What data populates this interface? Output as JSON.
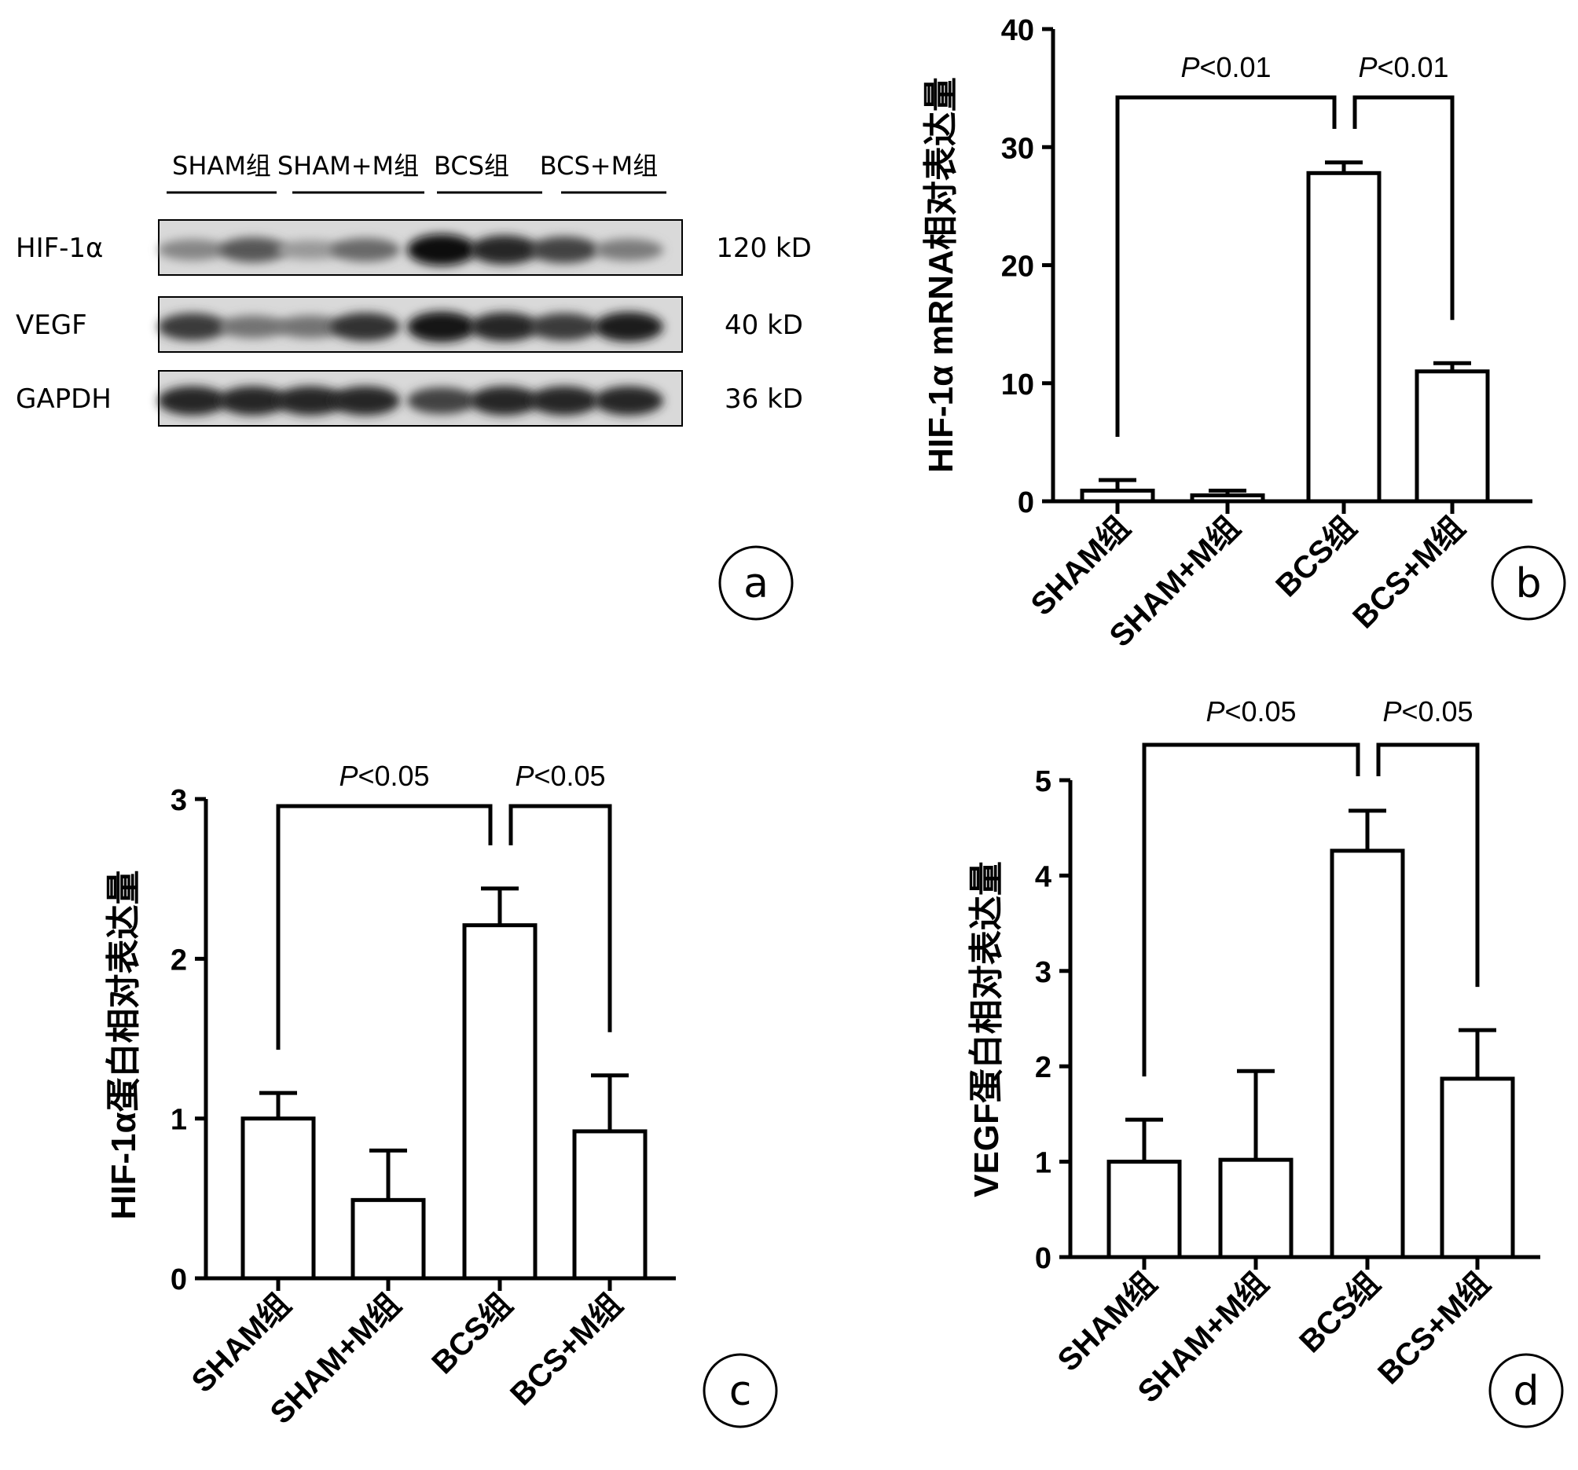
{
  "blot": {
    "panel_label": "a",
    "groups": [
      "SHAM组",
      "SHAM+M组",
      "BCS组",
      "BCS+M组"
    ],
    "rows": [
      {
        "protein": "HIF-1α",
        "size": "120 kD",
        "band_intensity": [
          0.35,
          0.6,
          0.25,
          0.5,
          1.0,
          0.85,
          0.7,
          0.4
        ]
      },
      {
        "protein": "VEGF",
        "size": "40 kD",
        "band_intensity": [
          0.75,
          0.45,
          0.45,
          0.8,
          0.95,
          0.85,
          0.75,
          0.9
        ]
      },
      {
        "protein": "GAPDH",
        "size": "36 kD",
        "band_intensity": [
          0.85,
          0.85,
          0.85,
          0.85,
          0.7,
          0.85,
          0.85,
          0.85
        ]
      }
    ]
  },
  "chart_data": [
    {
      "panel_label": "b",
      "type": "bar",
      "categories": [
        "SHAM组",
        "SHAM+M组",
        "BCS组",
        "BCS+M组"
      ],
      "values": [
        0.9,
        0.5,
        27.8,
        11.0
      ],
      "errors": [
        0.9,
        0.4,
        0.9,
        0.7
      ],
      "ylabel": "HIF-1α mRNA相对表达量",
      "ylim": [
        0,
        40
      ],
      "yticks": [
        "0",
        "10",
        "20",
        "30",
        "40"
      ],
      "significance": [
        {
          "from": 0,
          "to": 2,
          "label_italic": "P",
          "label": "<0.01"
        },
        {
          "from": 2,
          "to": 3,
          "label_italic": "P",
          "label": "<0.01"
        }
      ]
    },
    {
      "panel_label": "c",
      "type": "bar",
      "categories": [
        "SHAM组",
        "SHAM+M组",
        "BCS组",
        "BCS+M组"
      ],
      "values": [
        1.0,
        0.49,
        2.21,
        0.92
      ],
      "errors": [
        0.16,
        0.31,
        0.23,
        0.35
      ],
      "ylabel": "HIF-1α蛋白相对表达量",
      "ylim": [
        0,
        3
      ],
      "yticks": [
        "0",
        "1",
        "2",
        "3"
      ],
      "significance": [
        {
          "from": 0,
          "to": 2,
          "label_italic": "P",
          "label": "<0.05"
        },
        {
          "from": 2,
          "to": 3,
          "label_italic": "P",
          "label": "<0.05"
        }
      ]
    },
    {
      "panel_label": "d",
      "type": "bar",
      "categories": [
        "SHAM组",
        "SHAM+M组",
        "BCS组",
        "BCS+M组"
      ],
      "values": [
        1.0,
        1.02,
        4.26,
        1.87
      ],
      "errors": [
        0.44,
        0.93,
        0.42,
        0.51
      ],
      "ylabel": "VEGF蛋白相对表达量",
      "ylim": [
        0,
        5
      ],
      "yticks": [
        "0",
        "1",
        "2",
        "3",
        "4",
        "5"
      ],
      "significance": [
        {
          "from": 0,
          "to": 2,
          "label_italic": "P",
          "label": "<0.05"
        },
        {
          "from": 2,
          "to": 3,
          "label_italic": "P",
          "label": "<0.05"
        }
      ]
    }
  ]
}
